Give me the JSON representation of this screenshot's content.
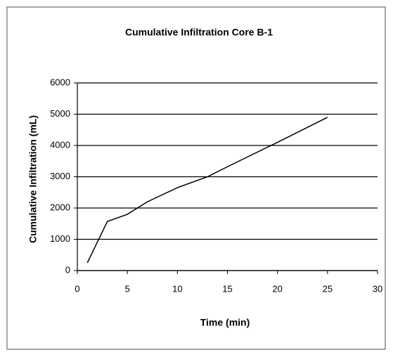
{
  "chart_data": {
    "type": "line",
    "title": "Cumulative Infiltration Core B-1",
    "x_label": "Time (min)",
    "y_label": "Cumulative Infiltration (mL)",
    "x": [
      1,
      3,
      5,
      7,
      10,
      13,
      15,
      20,
      25
    ],
    "series": [
      {
        "color": "#000000",
        "values": [
          250,
          1570,
          1800,
          2200,
          2650,
          3000,
          3320,
          4100,
          4900
        ]
      }
    ],
    "xlim": [
      0,
      30
    ],
    "xticks": [
      0,
      5,
      10,
      15,
      20,
      25,
      30
    ],
    "ylim": [
      0,
      6000
    ],
    "yticks": [
      0,
      1000,
      2000,
      3000,
      4000,
      5000,
      6000
    ],
    "grid": true
  }
}
